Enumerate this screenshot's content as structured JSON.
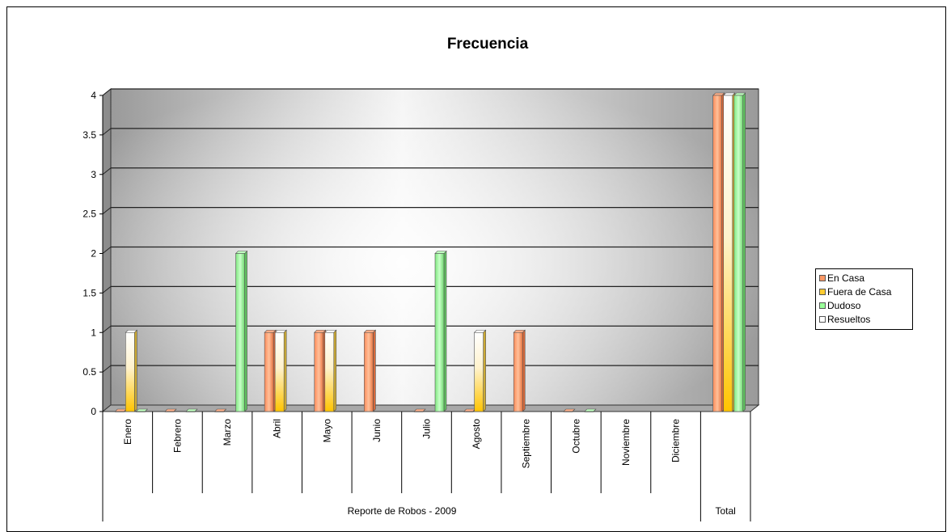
{
  "chart_data": {
    "type": "bar",
    "title": "Frecuencia",
    "group_label": "Reporte de Robos - 2009",
    "categories": [
      "Enero",
      "Febrero",
      "Marzo",
      "Abril",
      "Mayo",
      "Junio",
      "Julio",
      "Agosto",
      "Septiembre",
      "Octubre",
      "Noviembre",
      "Diciembre",
      "Total"
    ],
    "y_ticks": [
      "0",
      "0.5",
      "1",
      "1.5",
      "2",
      "2.5",
      "3",
      "3.5",
      "4"
    ],
    "ylim": [
      0,
      4
    ],
    "grid": true,
    "legend_position": "right",
    "series": [
      {
        "name": "En Casa",
        "color": "#FF9966",
        "values": [
          0,
          0,
          0,
          1,
          1,
          1,
          0,
          0,
          1,
          0,
          null,
          null,
          4
        ]
      },
      {
        "name": "Fuera de Casa",
        "color": "#FFCC33",
        "values": [
          1,
          null,
          null,
          1,
          1,
          null,
          null,
          1,
          null,
          null,
          null,
          null,
          4
        ]
      },
      {
        "name": "Dudoso",
        "color": "#99FF99",
        "values": [
          0,
          0,
          2,
          null,
          null,
          null,
          2,
          null,
          null,
          0,
          null,
          null,
          4
        ]
      },
      {
        "name": "Resueltos",
        "color": "#FFFFFF",
        "values": [
          null,
          null,
          null,
          null,
          null,
          null,
          null,
          null,
          null,
          null,
          null,
          null,
          null
        ]
      }
    ]
  }
}
